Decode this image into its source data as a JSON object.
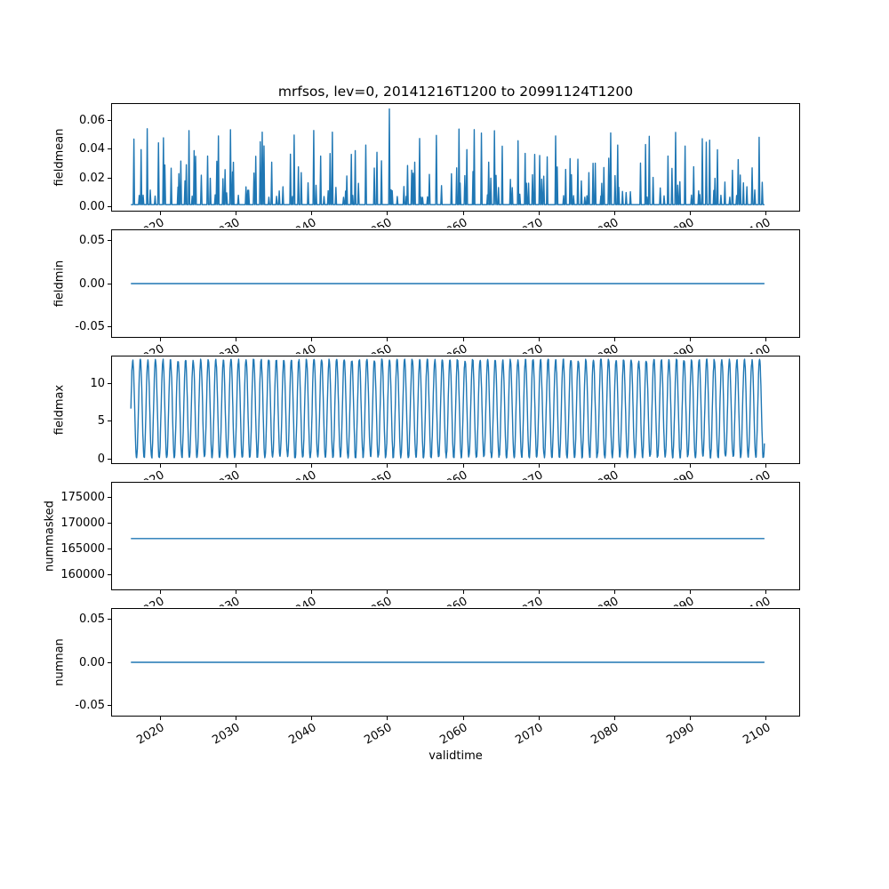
{
  "figure": {
    "title": "mrfsos, lev=0, 20141216T1200 to 20991124T1200",
    "xlabel": "validtime",
    "line_color": "#1f77b4",
    "background": "#ffffff"
  },
  "chart_data": {
    "type": "line",
    "title": "mrfsos, lev=0, 20141216T1200 to 20991124T1200",
    "xlabel": "validtime",
    "legend": "none",
    "grid": false,
    "x_axis": {
      "label": "validtime",
      "range": [
        2013.5,
        2104.5
      ],
      "data_range": [
        2016.0,
        2099.9
      ],
      "ticks": [
        2020,
        2030,
        2040,
        2050,
        2060,
        2070,
        2080,
        2090,
        2100
      ],
      "tick_labels": [
        "2020",
        "2030",
        "2040",
        "2050",
        "2060",
        "2070",
        "2080",
        "2090",
        "2100"
      ],
      "tick_rotation_deg": 30
    },
    "subplots": [
      {
        "ylabel": "fieldmean",
        "ylim": [
          -0.0035,
          0.072
        ],
        "yticks": [
          0.0,
          0.02,
          0.04,
          0.06
        ],
        "ytick_labels": [
          "0.00",
          "0.02",
          "0.04",
          "0.06"
        ],
        "series": {
          "name": "fieldmean",
          "pattern": "spikes",
          "baseline": 0.0,
          "spike_min": 0.006,
          "spike_max": 0.055,
          "max_spike_value": 0.0685,
          "max_spike_year": 2050,
          "spike_clusters": "1-3 narrow spikes per year"
        }
      },
      {
        "ylabel": "fieldmin",
        "ylim": [
          -0.0625,
          0.0625
        ],
        "yticks": [
          -0.05,
          0.0,
          0.05
        ],
        "ytick_labels": [
          "-0.05",
          "0.00",
          "0.05"
        ],
        "series": {
          "name": "fieldmin",
          "pattern": "constant",
          "value": 0.0
        }
      },
      {
        "ylabel": "fieldmax",
        "ylim": [
          -0.65,
          13.65
        ],
        "yticks": [
          0,
          5,
          10
        ],
        "ytick_labels": [
          "0",
          "5",
          "10"
        ],
        "series": {
          "name": "fieldmax",
          "pattern": "oscillation",
          "min": 0.05,
          "max": 13.3,
          "period_years": 1
        }
      },
      {
        "ylabel": "nummasked",
        "ylim": [
          157000,
          178000
        ],
        "yticks": [
          160000,
          165000,
          170000,
          175000
        ],
        "ytick_labels": [
          "160000",
          "165000",
          "170000",
          "175000"
        ],
        "series": {
          "name": "nummasked",
          "pattern": "constant",
          "value": 167000
        }
      },
      {
        "ylabel": "numnan",
        "ylim": [
          -0.0625,
          0.0625
        ],
        "yticks": [
          -0.05,
          0.0,
          0.05
        ],
        "ytick_labels": [
          "-0.05",
          "0.00",
          "0.05"
        ],
        "series": {
          "name": "numnan",
          "pattern": "constant",
          "value": 0.0
        }
      }
    ]
  }
}
